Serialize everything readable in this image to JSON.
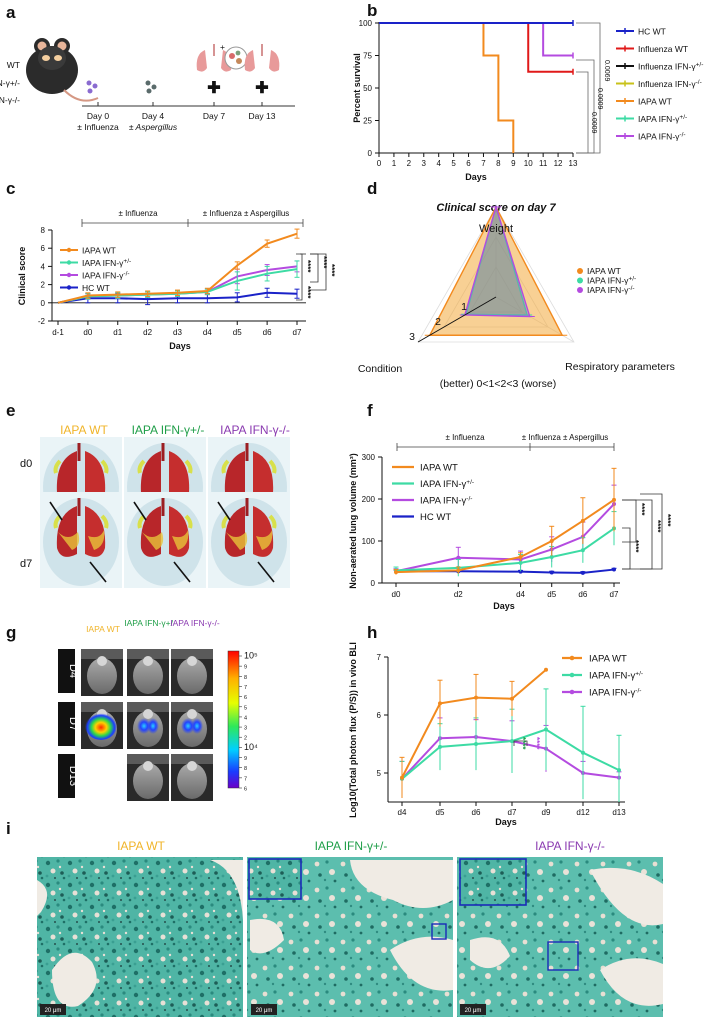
{
  "colors": {
    "wt": "#f28a1e",
    "het": "#3ddba4",
    "ko": "#b44be0",
    "hc": "#1a22c8",
    "flu": "#e01919",
    "flublack": "#111111",
    "fluyel": "#c8c21a",
    "wtlabel": "#f0b429",
    "hetlabel": "#1f9e48",
    "kolabel": "#8a3ab0"
  },
  "panel_labels": {
    "a": "a",
    "b": "b",
    "c": "c",
    "d": "d",
    "e": "e",
    "f": "f",
    "g": "g",
    "h": "h",
    "i": "i"
  },
  "panel_a": {
    "genotypes": [
      "WT",
      "IFN-γ+/-",
      "IFN-γ-/-"
    ],
    "timeline": [
      {
        "day": "Day 0",
        "note": "± Influenza"
      },
      {
        "day": "Day 4",
        "note": "± Aspergillus"
      },
      {
        "day": "Day 7",
        "note": ""
      },
      {
        "day": "Day 13",
        "note": ""
      }
    ],
    "plus_sign": "+",
    "cross_icons": [
      "✚",
      "✚"
    ]
  },
  "chart_data": [
    {
      "id": "b",
      "type": "line",
      "subtype": "survival",
      "ylabel": "Percent survival",
      "xlabel": "Days",
      "ylim": [
        0,
        100
      ],
      "xlim": [
        0,
        13
      ],
      "yticks": [
        "0",
        "25",
        "50",
        "75",
        "100"
      ],
      "xticks": [
        "0",
        "1",
        "2",
        "3",
        "4",
        "5",
        "6",
        "7",
        "8",
        "9",
        "10",
        "11",
        "12",
        "13"
      ],
      "legend": [
        "HC WT",
        "Influenza WT",
        "Influenza IFN-γ+/-",
        "Influenza IFN-γ-/-",
        "IAPA WT",
        "IAPA IFN-γ+/-",
        "IAPA IFN-γ-/-"
      ],
      "series": [
        {
          "name": "IAPA WT",
          "steps": [
            [
              0,
              100
            ],
            [
              7,
              100
            ],
            [
              7,
              75
            ],
            [
              8,
              75
            ],
            [
              8,
              25
            ],
            [
              9,
              25
            ],
            [
              9,
              0
            ]
          ]
        },
        {
          "name": "Influenza WT",
          "steps": [
            [
              0,
              100
            ],
            [
              10,
              100
            ],
            [
              10,
              62.5
            ],
            [
              13,
              62.5
            ]
          ]
        },
        {
          "name": "IAPA IFN-γ-/-",
          "steps": [
            [
              0,
              100
            ],
            [
              11,
              100
            ],
            [
              11,
              75
            ],
            [
              13,
              75
            ]
          ]
        },
        {
          "name": "HC WT",
          "steps": [
            [
              0,
              100
            ],
            [
              13,
              100
            ]
          ]
        }
      ],
      "pvalues": [
        "0.0009",
        "0.0009",
        "0.0069"
      ]
    },
    {
      "id": "c",
      "type": "line",
      "ylabel": "Clinical score",
      "xlabel": "Days",
      "ylim": [
        -2,
        8
      ],
      "yticks": [
        "-2",
        "0",
        "2",
        "4",
        "6",
        "8"
      ],
      "categories": [
        "d-1",
        "d0",
        "d1",
        "d2",
        "d3",
        "d4",
        "d5",
        "d6",
        "d7"
      ],
      "annotations": [
        "± Influenza",
        "± Influenza ± Aspergillus"
      ],
      "series": [
        {
          "name": "IAPA WT",
          "values": [
            0,
            0.8,
            0.9,
            1.0,
            1.1,
            1.3,
            4.1,
            6.5,
            7.6
          ],
          "err": [
            0,
            0.3,
            0.3,
            0.3,
            0.3,
            0.3,
            0.4,
            0.4,
            0.5
          ]
        },
        {
          "name": "IAPA IFN-γ+/-",
          "values": [
            0,
            0.7,
            0.8,
            0.9,
            1.0,
            1.2,
            2.4,
            3.2,
            3.7
          ],
          "err": [
            0,
            0.3,
            0.3,
            0.3,
            0.3,
            0.3,
            1.0,
            0.8,
            0.9
          ]
        },
        {
          "name": "IAPA IFN-γ-/-",
          "values": [
            0,
            0.7,
            0.8,
            0.9,
            1.0,
            1.2,
            2.9,
            3.6,
            4.0
          ],
          "err": [
            0,
            0.3,
            0.3,
            0.3,
            0.3,
            0.3,
            0.8,
            0.6,
            0.6
          ]
        },
        {
          "name": "HC WT",
          "values": [
            0,
            0.5,
            0.5,
            0.4,
            0.5,
            0.5,
            0.6,
            1.1,
            1.0
          ],
          "err": [
            0,
            0.5,
            0.5,
            0.6,
            0.5,
            0.5,
            0.5,
            0.5,
            0.5
          ]
        }
      ],
      "legend": [
        "IAPA WT",
        "IAPA IFN-γ+/-",
        "IAPA IFN-γ-/-",
        "HC WT"
      ],
      "stats": [
        "****",
        "****",
        "****",
        "****"
      ]
    },
    {
      "id": "d",
      "type": "radar",
      "title": "Clinical score on day 7",
      "axes": [
        "Weight",
        "Respiratory parameters",
        "Condition"
      ],
      "scale_note": "(better) 0<1<2<3 (worse)",
      "ring_labels": [
        "1",
        "2",
        "3"
      ],
      "max": 3,
      "series": [
        {
          "name": "IAPA WT",
          "values": [
            3,
            2.55,
            2.55
          ]
        },
        {
          "name": "IAPA IFN-γ+/-",
          "values": [
            3,
            1.2,
            1.15
          ]
        },
        {
          "name": "IAPA IFN-γ-/-",
          "values": [
            3,
            1.3,
            1.2
          ]
        }
      ],
      "legend": [
        "IAPA WT",
        "IAPA IFN-γ+/-",
        "IAPA IFN-γ-/-"
      ]
    },
    {
      "id": "f",
      "type": "line",
      "ylabel": "Non-aerated lung volume (mm³)",
      "xlabel": "Days",
      "ylim": [
        0,
        300
      ],
      "yticks": [
        "0",
        "100",
        "200",
        "300"
      ],
      "x": [
        0,
        2,
        4,
        5,
        6,
        7
      ],
      "categories": [
        "d0",
        "d2",
        "d4",
        "d5",
        "d6",
        "d7"
      ],
      "annotations": [
        "± Influenza",
        "± Influenza ± Aspergillus"
      ],
      "series": [
        {
          "name": "IAPA WT",
          "values": [
            26,
            30,
            62,
            100,
            148,
            198
          ],
          "err": [
            6,
            8,
            10,
            35,
            55,
            75
          ]
        },
        {
          "name": "IAPA IFN-γ+/-",
          "values": [
            30,
            36,
            48,
            62,
            78,
            130
          ],
          "err": [
            8,
            20,
            20,
            25,
            30,
            40
          ]
        },
        {
          "name": "IAPA IFN-γ-/-",
          "values": [
            28,
            60,
            56,
            80,
            110,
            188
          ],
          "err": [
            6,
            25,
            20,
            30,
            35,
            45
          ]
        },
        {
          "name": "HC WT",
          "values": [
            28,
            28,
            27,
            25,
            24,
            32
          ],
          "err": [
            3,
            3,
            3,
            3,
            3,
            3
          ]
        }
      ],
      "legend": [
        "IAPA WT",
        "IAPA IFN-γ+/-",
        "IAPA IFN-γ-/-",
        "HC WT"
      ],
      "stats": [
        "****",
        "****",
        "****",
        "****"
      ]
    },
    {
      "id": "h",
      "type": "line",
      "ylabel": "Log10(Total photon flux (P/S)) in vivo BLI",
      "xlabel": "Days",
      "ylim": [
        4.5,
        7
      ],
      "yticks": [
        "5",
        "6",
        "7"
      ],
      "x": [
        4,
        5,
        6,
        7,
        9,
        12,
        13
      ],
      "categories": [
        "d4",
        "d5",
        "d6",
        "d7",
        "d9",
        "d12",
        "d13"
      ],
      "series": [
        {
          "name": "IAPA WT",
          "values": [
            4.92,
            6.2,
            6.3,
            6.28,
            6.78,
            null,
            null
          ],
          "err": [
            0.35,
            0.4,
            0.4,
            0.3,
            0,
            0,
            0
          ]
        },
        {
          "name": "IAPA IFN-γ+/-",
          "values": [
            4.9,
            5.45,
            5.5,
            5.55,
            5.75,
            5.35,
            5.05
          ],
          "err": [
            0.3,
            0.4,
            0.45,
            0.55,
            0.7,
            0.8,
            0.6
          ]
        },
        {
          "name": "IAPA IFN-γ-/-",
          "values": [
            4.9,
            5.6,
            5.62,
            5.55,
            5.42,
            5.0,
            4.92
          ],
          "err": [
            0.3,
            0.35,
            0.3,
            0.35,
            0.4,
            0.2,
            0.1
          ]
        }
      ],
      "legend": [
        "IAPA WT",
        "IAPA IFN-γ+/-",
        "IAPA IFN-γ-/-"
      ],
      "stats": [
        "****",
        "****"
      ]
    }
  ],
  "panel_e": {
    "columns": [
      "IAPA WT",
      "IAPA IFN-γ+/-",
      "IAPA IFN-γ-/-"
    ],
    "rows": [
      "d0",
      "d7"
    ]
  },
  "panel_g": {
    "columns": [
      "IAPA WT",
      "IAPA IFN-γ+/-",
      "IAPA IFN-γ-/-"
    ],
    "rows": [
      "D4",
      "D7",
      "D13"
    ],
    "colorbar_ticks": [
      "10⁵",
      "9",
      "8",
      "7",
      "6",
      "5",
      "4",
      "3",
      "2",
      "10⁴",
      "9",
      "8",
      "7",
      "6"
    ]
  },
  "panel_i": {
    "columns": [
      "IAPA WT",
      "IAPA IFN-γ+/-",
      "IAPA IFN-γ-/-"
    ],
    "scalebar": "20 μm"
  }
}
